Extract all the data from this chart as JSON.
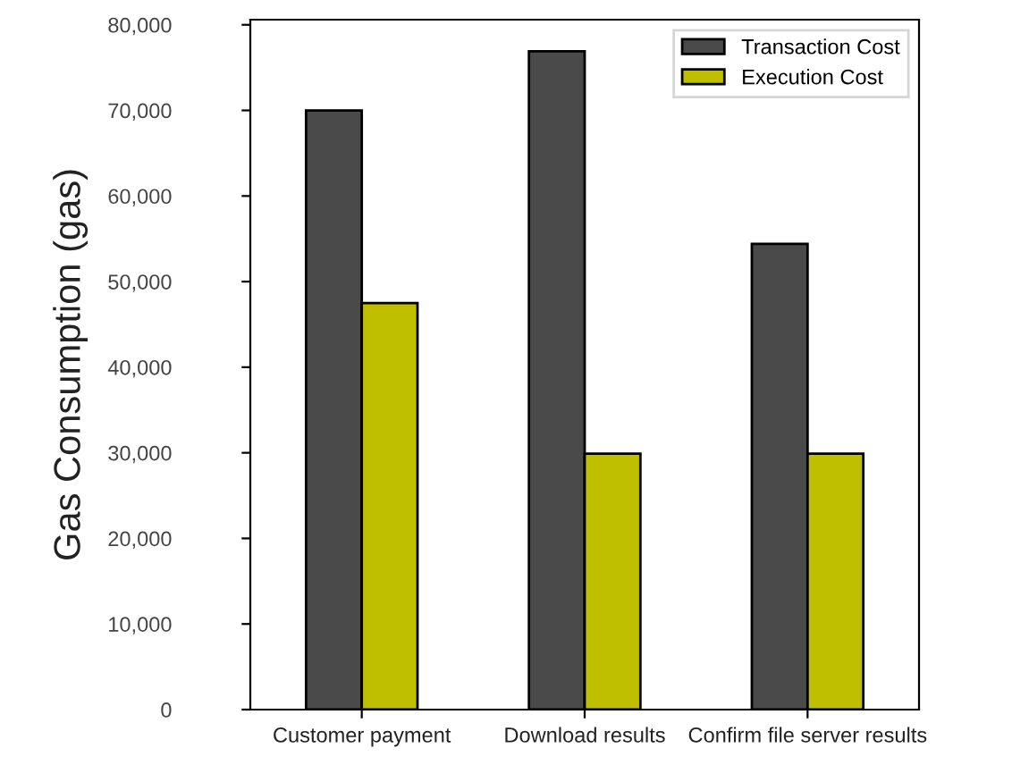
{
  "chart_data": {
    "type": "bar",
    "ylabel": "Gas Consumption (gas)",
    "categories": [
      "Customer payment",
      "Download results",
      "Confirm file server results"
    ],
    "series": [
      {
        "name": "Transaction Cost",
        "color": "#4a4a4a",
        "values": [
          70000,
          76900,
          54400
        ]
      },
      {
        "name": "Execution Cost",
        "color": "#bfbf00",
        "values": [
          47500,
          29900,
          29900
        ]
      }
    ],
    "ylim": [
      0,
      80600
    ],
    "yticks": [
      {
        "value": 0,
        "label": "0"
      },
      {
        "value": 10000,
        "label": "10,000"
      },
      {
        "value": 20000,
        "label": "20,000"
      },
      {
        "value": 30000,
        "label": "30,000"
      },
      {
        "value": 40000,
        "label": "40,000"
      },
      {
        "value": 50000,
        "label": "50,000"
      },
      {
        "value": 60000,
        "label": "60,000"
      },
      {
        "value": 70000,
        "label": "70,000"
      },
      {
        "value": 80000,
        "label": "80,000"
      }
    ],
    "grid": false,
    "legend": "top right"
  }
}
